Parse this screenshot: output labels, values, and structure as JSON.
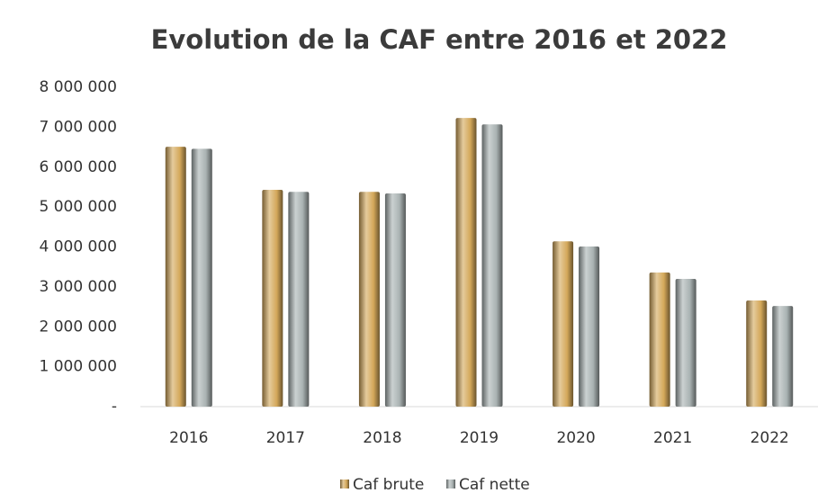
{
  "chart_data": {
    "type": "bar",
    "title": "Evolution de la CAF entre 2016 et 2022",
    "categories": [
      "2016",
      "2017",
      "2018",
      "2019",
      "2020",
      "2021",
      "2022"
    ],
    "series": [
      {
        "name": "Caf brute",
        "color": "#d4a85a",
        "values": [
          6510000,
          5430000,
          5380000,
          7230000,
          4140000,
          3360000,
          2660000
        ]
      },
      {
        "name": "Caf nette",
        "color": "#a9b2b2",
        "values": [
          6460000,
          5380000,
          5340000,
          7070000,
          4010000,
          3200000,
          2520000
        ]
      }
    ],
    "ylim": [
      0,
      8000000
    ],
    "yticks": [
      {
        "value": 0,
        "label": "-"
      },
      {
        "value": 1000000,
        "label": "1 000 000"
      },
      {
        "value": 2000000,
        "label": "2 000 000"
      },
      {
        "value": 3000000,
        "label": "3 000 000"
      },
      {
        "value": 4000000,
        "label": "4 000 000"
      },
      {
        "value": 5000000,
        "label": "5 000 000"
      },
      {
        "value": 6000000,
        "label": "6 000 000"
      },
      {
        "value": 7000000,
        "label": "7 000 000"
      },
      {
        "value": 8000000,
        "label": "8 000 000"
      }
    ],
    "legend": "bottom"
  }
}
